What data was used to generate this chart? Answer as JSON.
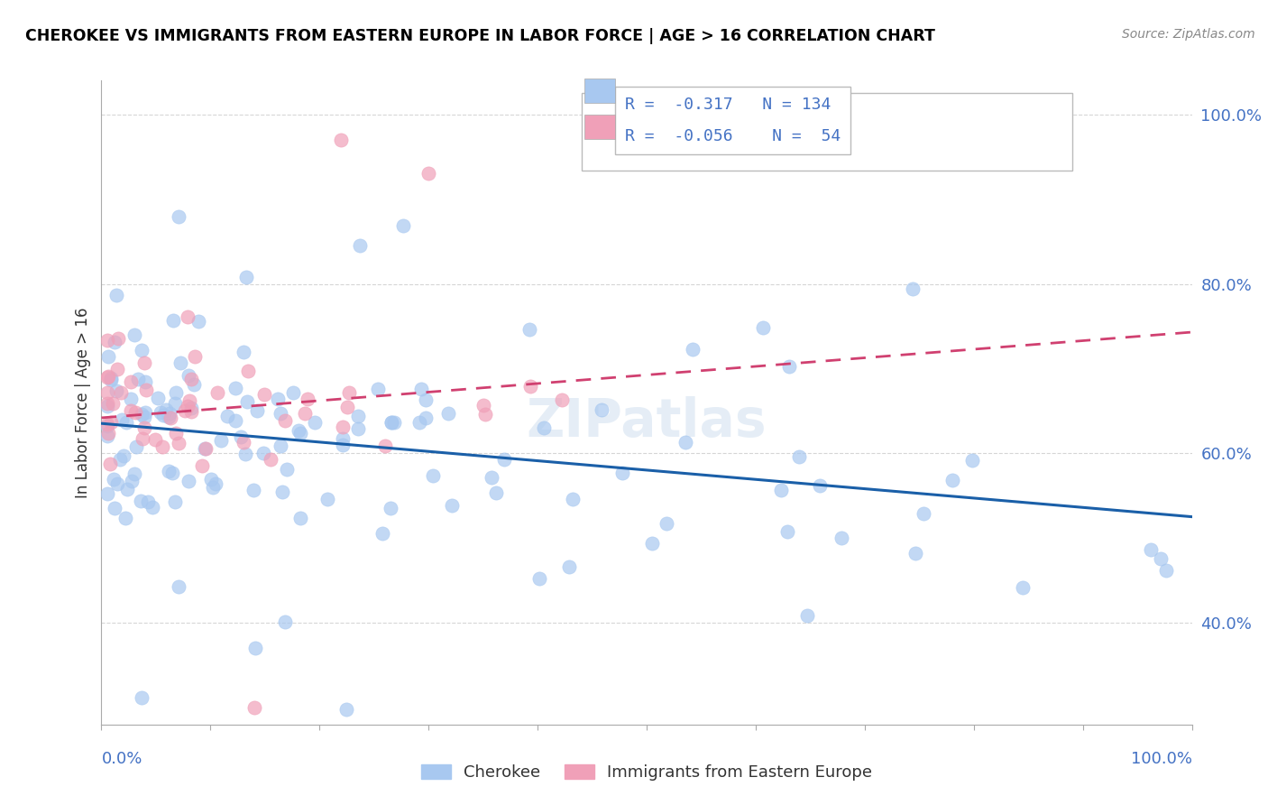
{
  "title": "CHEROKEE VS IMMIGRANTS FROM EASTERN EUROPE IN LABOR FORCE | AGE > 16 CORRELATION CHART",
  "source": "Source: ZipAtlas.com",
  "ylabel": "In Labor Force | Age > 16",
  "cherokee_color": "#A8C8F0",
  "ee_color": "#F0A0B8",
  "cherokee_R": -0.317,
  "cherokee_N": 134,
  "ee_R": -0.056,
  "ee_N": 54,
  "trend_blue_color": "#1a5fa8",
  "trend_pink_color": "#d04070",
  "legend_label_cherokee": "Cherokee",
  "legend_label_ee": "Immigrants from Eastern Europe",
  "watermark": "ZIPatlas",
  "background_color": "#FFFFFF",
  "grid_color": "#CCCCCC",
  "label_color": "#4472C4",
  "title_color": "#000000",
  "source_color": "#888888"
}
